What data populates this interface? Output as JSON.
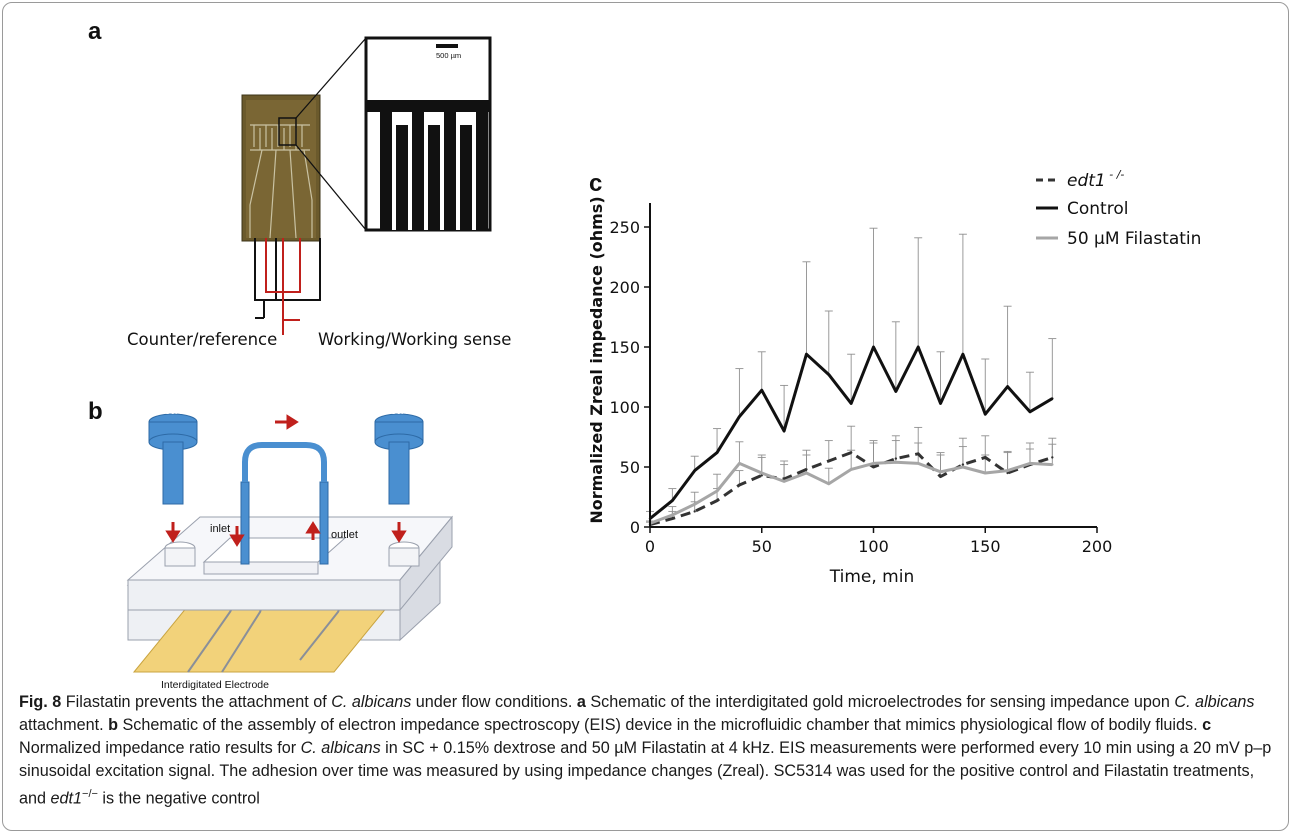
{
  "panels": {
    "a": "a",
    "b": "b",
    "c": "c"
  },
  "panel_a": {
    "scale_bar": "500 µm",
    "left_label": "Counter/reference",
    "right_label": "Working/Working sense"
  },
  "panel_b": {
    "screw_left": "screw",
    "screw_right": "screw",
    "inlet": "inlet",
    "outlet": "outlet",
    "electrode": "Interdigitated Electrode"
  },
  "chart_data": {
    "type": "line",
    "xlabel": "Time, min",
    "ylabel": "Normalized Zreal impedance (ohms)",
    "xlim": [
      0,
      200
    ],
    "ylim": [
      0,
      270
    ],
    "xticks": [
      0,
      50,
      100,
      150,
      200
    ],
    "yticks": [
      0,
      50,
      100,
      150,
      200,
      250
    ],
    "x": [
      0,
      10,
      20,
      30,
      40,
      50,
      60,
      70,
      80,
      90,
      100,
      110,
      120,
      130,
      140,
      150,
      160,
      170,
      180
    ],
    "legend_position": "top-right",
    "series": [
      {
        "name": "edt1",
        "name_superscript": "- /-",
        "style": "dashed",
        "color": "#333333",
        "values": [
          2,
          7,
          13,
          22,
          35,
          43,
          40,
          48,
          55,
          62,
          50,
          57,
          61,
          42,
          52,
          58,
          45,
          52,
          58
        ],
        "err_plus": [
          2,
          6,
          8,
          10,
          12,
          15,
          15,
          16,
          17,
          22,
          22,
          19,
          22,
          18,
          22,
          18,
          17,
          13,
          16
        ]
      },
      {
        "name": "Control",
        "style": "solid",
        "color": "#111111",
        "values": [
          7,
          22,
          47,
          62,
          92,
          114,
          80,
          144,
          127,
          103,
          150,
          113,
          150,
          103,
          144,
          94,
          117,
          96,
          107
        ],
        "err_plus": [
          6,
          10,
          12,
          20,
          40,
          32,
          38,
          77,
          53,
          41,
          99,
          58,
          91,
          43,
          100,
          46,
          67,
          33,
          50
        ]
      },
      {
        "name": "50 µM Filastatin",
        "style": "solid",
        "color": "#a6a6a6",
        "values": [
          3,
          10,
          19,
          30,
          53,
          45,
          38,
          45,
          36,
          48,
          53,
          54,
          53,
          46,
          50,
          45,
          47,
          53,
          52
        ],
        "err_plus": [
          2,
          7,
          10,
          14,
          18,
          15,
          14,
          15,
          13,
          16,
          17,
          18,
          17,
          16,
          17,
          15,
          16,
          17,
          17
        ]
      }
    ]
  },
  "caption": {
    "fig_label": "Fig. 8",
    "p1": "  Filastatin prevents the attachment of ",
    "ca1": "C. albicans",
    "p2": " under flow conditions. ",
    "la": "a",
    "p3": " Schematic of the interdigitated gold microelectrodes for sensing impedance upon ",
    "ca2": "C. albicans",
    "p4": " attachment. ",
    "lb": "b",
    "p5": " Schematic of the assembly of electron impedance spectroscopy (EIS) device in the microfluidic chamber that mimics physiological flow of bodily fluids. ",
    "lc": "c",
    "p6": " Normalized impedance ratio results for ",
    "ca3": "C. albicans",
    "p7": " in SC + 0.15% dextrose and 50 µM Filastatin at 4 kHz. EIS measurements were performed every 10 min using a 20 mV p–p sinusoidal excitation signal. The adhesion over time was measured by using impedance changes (Zreal). SC5314 was used for the positive control and Filastatin treatments, and ",
    "edt": "edt1",
    "edt_sup": "−/−",
    "p8": " is the negative control"
  }
}
